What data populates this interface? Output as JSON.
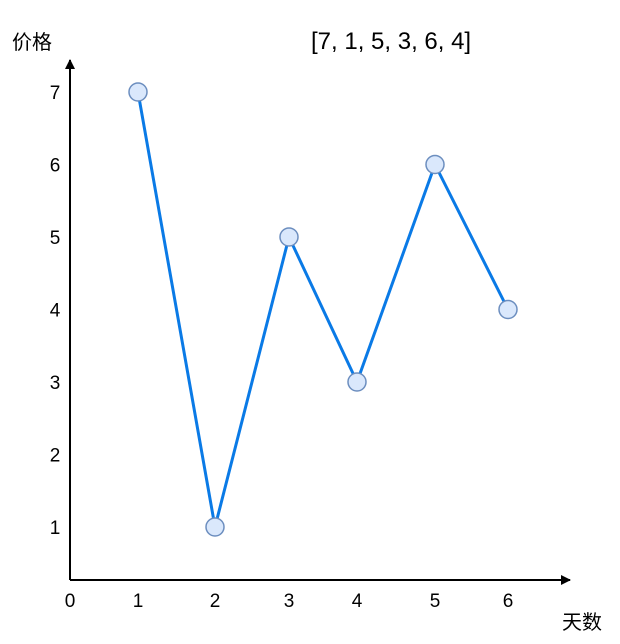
{
  "chart_data": {
    "type": "line",
    "title": "[7, 1, 5, 3, 6, 4]",
    "ylabel": "价格",
    "xlabel": "天数",
    "x_ticks": [
      "0",
      "1",
      "2",
      "3",
      "4",
      "5",
      "6"
    ],
    "y_ticks": [
      "1",
      "2",
      "3",
      "4",
      "5",
      "6",
      "7"
    ],
    "x": [
      1,
      2,
      3,
      4,
      5,
      6
    ],
    "y": [
      7,
      1,
      5,
      3,
      6,
      4
    ],
    "xlim": [
      0,
      6.5
    ],
    "ylim": [
      0,
      7.5
    ],
    "grid": false,
    "colors": {
      "line": "#0a7ae6",
      "marker_fill": "#dae8fc",
      "marker_stroke": "#6c8ebf",
      "axis": "#000000"
    }
  }
}
